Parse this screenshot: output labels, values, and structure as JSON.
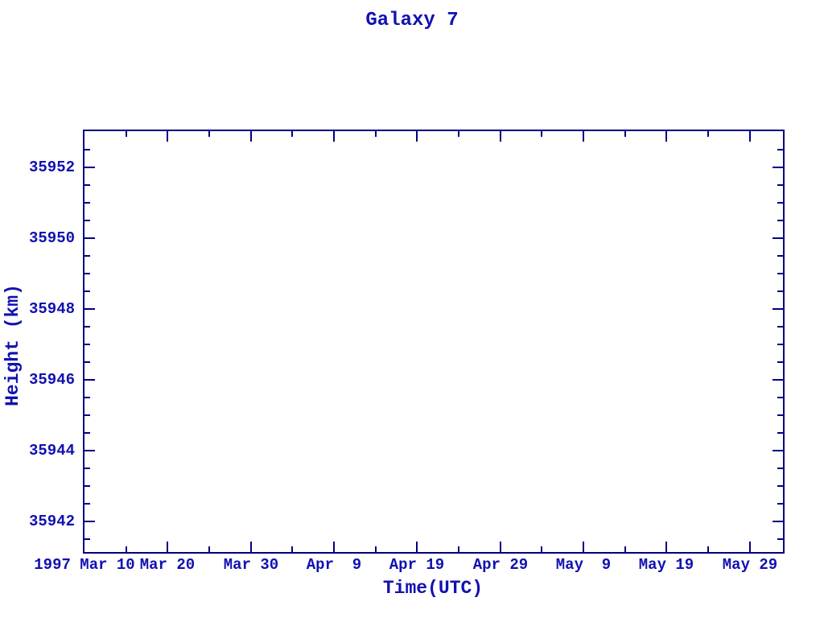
{
  "colors": {
    "background": "#ffffff",
    "axis_line": "#000080",
    "text": "#1111b2"
  },
  "chart_data": {
    "type": "line",
    "title": "Galaxy 7",
    "xlabel": "Time(UTC)",
    "ylabel": "Height (km)",
    "grid": false,
    "legend": null,
    "series": [],
    "plot_area_empty": true,
    "x_axis": {
      "epoch_label": "1997 Mar 10",
      "unit": "days since 1997 Mar 10",
      "range_days": [
        0,
        84
      ],
      "major_ticks": [
        {
          "day": 0,
          "label": "1997 Mar 10"
        },
        {
          "day": 10,
          "label": "Mar 20"
        },
        {
          "day": 20,
          "label": "Mar 30"
        },
        {
          "day": 30,
          "label": "Apr  9"
        },
        {
          "day": 40,
          "label": "Apr 19"
        },
        {
          "day": 50,
          "label": "Apr 29"
        },
        {
          "day": 60,
          "label": "May  9"
        },
        {
          "day": 70,
          "label": "May 19"
        },
        {
          "day": 80,
          "label": "May 29"
        }
      ],
      "minor_tick_step_days": 5
    },
    "y_axis": {
      "range": [
        35941.13,
        35953.02
      ],
      "major_ticks": [
        {
          "value": 35942,
          "label": "35942"
        },
        {
          "value": 35944,
          "label": "35944"
        },
        {
          "value": 35946,
          "label": "35946"
        },
        {
          "value": 35948,
          "label": "35948"
        },
        {
          "value": 35950,
          "label": "35950"
        },
        {
          "value": 35952,
          "label": "35952"
        }
      ],
      "minor_tick_step": 0.5
    }
  }
}
